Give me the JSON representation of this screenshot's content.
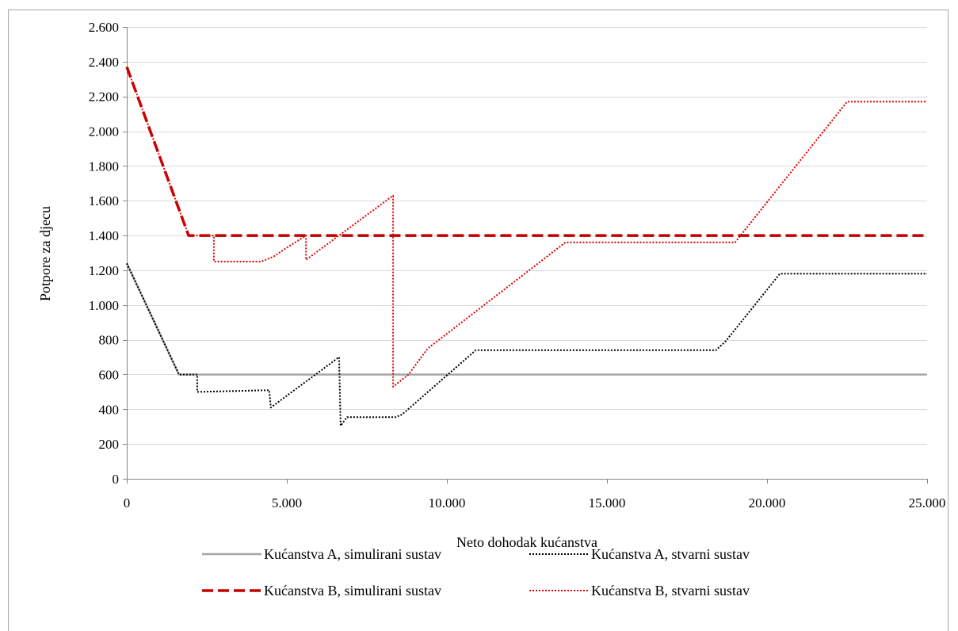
{
  "chart_data": {
    "type": "line",
    "xlabel": "Neto dohodak kućanstva",
    "ylabel": "Potpore za djecu",
    "xlim": [
      0,
      25000
    ],
    "ylim": [
      0,
      2600
    ],
    "x_ticks": [
      0,
      5000,
      10000,
      15000,
      20000,
      25000
    ],
    "x_tick_labels": [
      "0",
      "5.000",
      "10.000",
      "15.000",
      "20.000",
      "25.000"
    ],
    "y_ticks": [
      0,
      200,
      400,
      600,
      800,
      1000,
      1200,
      1400,
      1600,
      1800,
      2000,
      2200,
      2400,
      2600
    ],
    "y_tick_labels": [
      "0",
      "200",
      "400",
      "600",
      "800",
      "1.000",
      "1.200",
      "1.400",
      "1.600",
      "1.800",
      "2.000",
      "2.200",
      "2.400",
      "2.600"
    ],
    "grid": true,
    "legend": "bottom",
    "series": [
      {
        "name": "Kućanstva A, simulirani sustav",
        "color": "#a6a6a6",
        "style": "solid",
        "points": [
          [
            0,
            1240
          ],
          [
            1630,
            600
          ],
          [
            25000,
            600
          ]
        ]
      },
      {
        "name": "Kućanstva A, stvarni sustav",
        "color": "#000000",
        "style": "dotted",
        "points": [
          [
            0,
            1240
          ],
          [
            1630,
            600
          ],
          [
            2200,
            600
          ],
          [
            2200,
            500
          ],
          [
            4450,
            510
          ],
          [
            4500,
            410
          ],
          [
            6630,
            700
          ],
          [
            6680,
            305
          ],
          [
            6880,
            355
          ],
          [
            8400,
            355
          ],
          [
            8600,
            370
          ],
          [
            10900,
            740
          ],
          [
            18400,
            740
          ],
          [
            18700,
            790
          ],
          [
            20400,
            1180
          ],
          [
            25000,
            1180
          ]
        ]
      },
      {
        "name": "Kućanstva B, simulirani sustav",
        "color": "#c00000",
        "style": "dashed",
        "points": [
          [
            0,
            2370
          ],
          [
            1930,
            1400
          ],
          [
            25000,
            1400
          ]
        ]
      },
      {
        "name": "Kućanstva B, stvarni sustav",
        "color": "#e00000",
        "style": "dotted",
        "points": [
          [
            0,
            2370
          ],
          [
            1930,
            1400
          ],
          [
            2720,
            1400
          ],
          [
            2720,
            1250
          ],
          [
            4200,
            1250
          ],
          [
            4600,
            1280
          ],
          [
            5000,
            1330
          ],
          [
            5600,
            1400
          ],
          [
            5600,
            1260
          ],
          [
            8320,
            1630
          ],
          [
            8320,
            530
          ],
          [
            8800,
            600
          ],
          [
            9400,
            750
          ],
          [
            13700,
            1360
          ],
          [
            19000,
            1360
          ],
          [
            22500,
            2170
          ],
          [
            25000,
            2170
          ]
        ]
      }
    ]
  }
}
